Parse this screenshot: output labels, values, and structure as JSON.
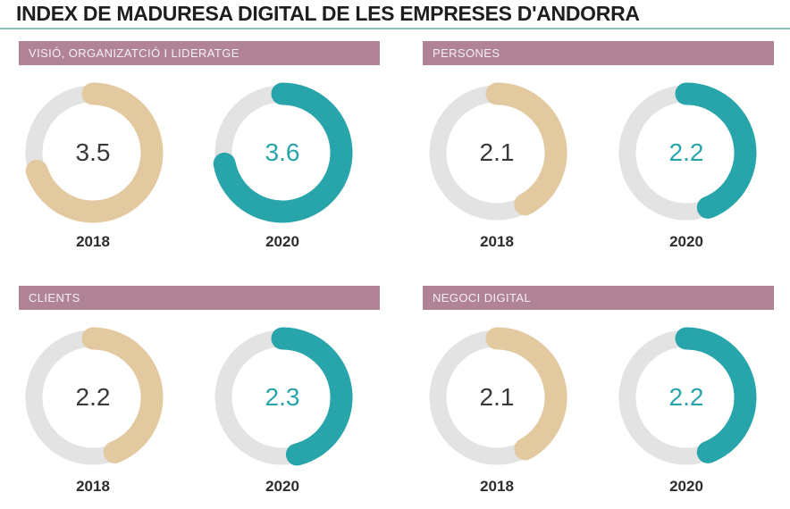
{
  "title": "INDEX DE MADURESA DIGITAL DE LES EMPRESES D'ANDORRA",
  "colors": {
    "series_2018": "#e2c9a0",
    "series_2020": "#28a5ab",
    "track": "#e3e3e3",
    "header_bar": "#b08397",
    "header_text": "#f6f0f3",
    "divider": "#85c3bc",
    "title_text": "#1e1e1e",
    "value_text_2018": "#3c3835",
    "value_text_2020": "#28a5ab",
    "year_text": "#2d2d2d"
  },
  "scale": {
    "min": 0,
    "max": 5
  },
  "chart_data": [
    {
      "type": "donut",
      "title": "VISIÓ, ORGANIZATCIÓ I LIDERATGE",
      "categories": [
        "2018",
        "2020"
      ],
      "values": [
        3.5,
        3.6
      ],
      "value_range": [
        0,
        5
      ],
      "legend_position": "none"
    },
    {
      "type": "donut",
      "title": "PERSONES",
      "categories": [
        "2018",
        "2020"
      ],
      "values": [
        2.1,
        2.2
      ],
      "value_range": [
        0,
        5
      ],
      "legend_position": "none"
    },
    {
      "type": "donut",
      "title": "CLIENTS",
      "categories": [
        "2018",
        "2020"
      ],
      "values": [
        2.2,
        2.3
      ],
      "value_range": [
        0,
        5
      ],
      "legend_position": "none"
    },
    {
      "type": "donut",
      "title": "NEGOCI DIGITAL",
      "categories": [
        "2018",
        "2020"
      ],
      "values": [
        2.1,
        2.2
      ],
      "value_range": [
        0,
        5
      ],
      "legend_position": "none"
    }
  ]
}
